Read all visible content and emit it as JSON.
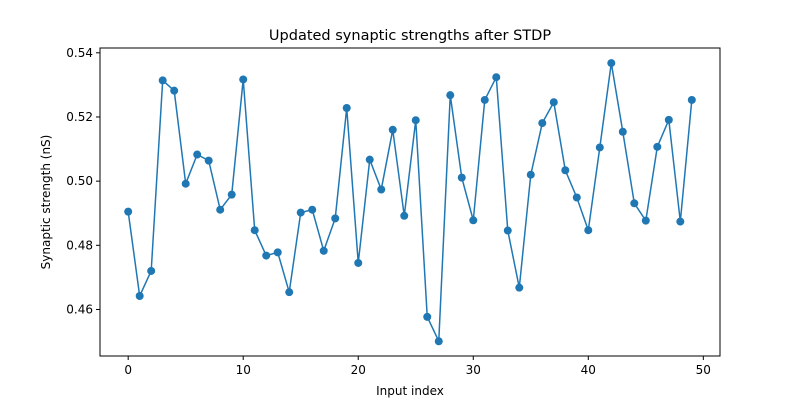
{
  "chart_data": {
    "type": "line",
    "title": "Updated synaptic strengths after STDP",
    "xlabel": "Input index",
    "ylabel": "Synaptic strength (nS)",
    "xlim": [
      -2.45,
      51.45
    ],
    "ylim": [
      0.4455,
      0.5415
    ],
    "xticks": [
      0,
      10,
      20,
      30,
      40,
      50
    ],
    "yticks": [
      0.46,
      0.48,
      0.5,
      0.52,
      0.54
    ],
    "ytick_labels": [
      "0.46",
      "0.48",
      "0.50",
      "0.52",
      "0.54"
    ],
    "grid": false,
    "marker": "circle",
    "color": "#1f77b4",
    "series": [
      {
        "x": [
          0,
          1,
          2,
          3,
          4,
          5,
          6,
          7,
          8,
          9,
          10,
          11,
          12,
          13,
          14,
          15,
          16,
          17,
          18,
          19,
          20,
          21,
          22,
          23,
          24,
          25,
          26,
          27,
          28,
          29,
          30,
          31,
          32,
          33,
          34,
          35,
          36,
          37,
          38,
          39,
          40,
          41,
          42,
          43,
          44,
          45,
          46,
          47,
          48,
          49
        ],
        "values": [
          0.4905,
          0.4642,
          0.472,
          0.5314,
          0.5282,
          0.4992,
          0.5083,
          0.5064,
          0.4911,
          0.4958,
          0.5317,
          0.4847,
          0.4768,
          0.4778,
          0.4654,
          0.4902,
          0.4911,
          0.4783,
          0.4884,
          0.5228,
          0.4745,
          0.5067,
          0.4974,
          0.516,
          0.4892,
          0.519,
          0.4577,
          0.4501,
          0.5268,
          0.5011,
          0.4878,
          0.5253,
          0.5324,
          0.4846,
          0.4668,
          0.502,
          0.5181,
          0.5246,
          0.5034,
          0.4949,
          0.4847,
          0.5105,
          0.5368,
          0.5154,
          0.4931,
          0.4877,
          0.5107,
          0.5191,
          0.4874,
          0.5253
        ]
      }
    ]
  }
}
